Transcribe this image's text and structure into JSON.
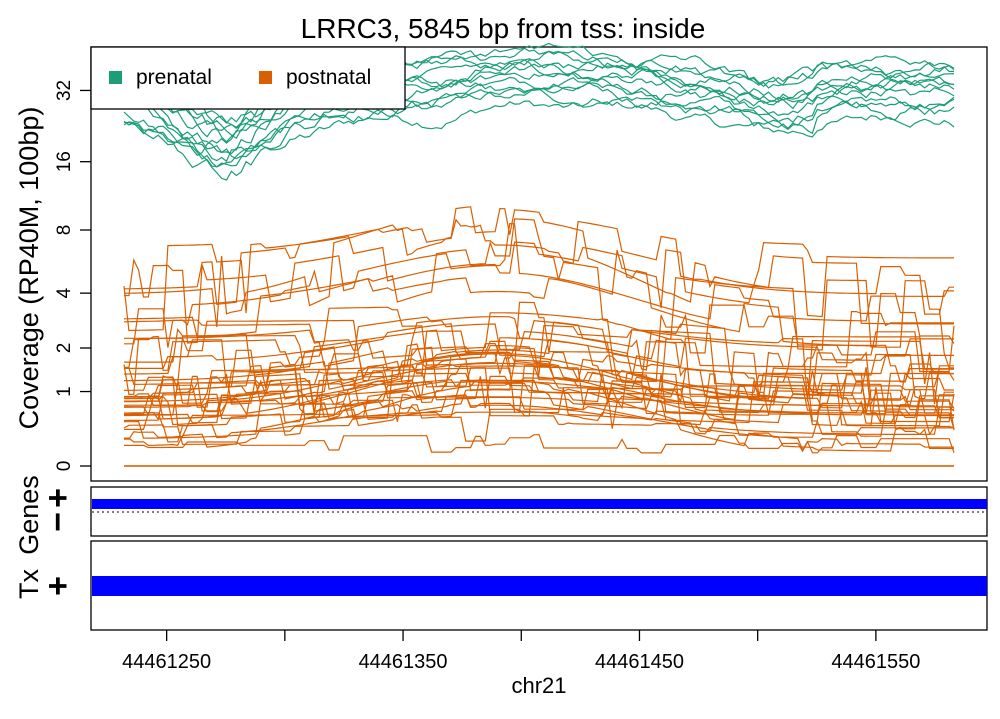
{
  "chart_data": {
    "type": "line",
    "title": "LRRC3, 5845 bp from tss: inside",
    "xlabel": "chr21",
    "ylabel": "Coverage (RP40M, 100bp)",
    "x_range": [
      44461218,
      44461597
    ],
    "x_ticks": [
      44461250,
      44461300,
      44461350,
      44461400,
      44461450,
      44461500,
      44461550
    ],
    "x_tick_labels": [
      "44461250",
      "",
      "44461350",
      "",
      "44461450",
      "",
      "44461550"
    ],
    "y_scale": "log2(y+1)",
    "y_ticks": [
      0,
      1,
      2,
      4,
      8,
      16,
      32
    ],
    "y_tick_labels": [
      "0",
      "1",
      "2",
      "4",
      "8",
      "16",
      "32"
    ],
    "legend": {
      "placement": "top-left",
      "entries": [
        {
          "label": "prenatal",
          "color": "#1b9e77"
        },
        {
          "label": "postnatal",
          "color": "#d95f02"
        }
      ]
    },
    "series_groups": [
      {
        "name": "prenatal",
        "color": "#1b9e77",
        "count": 12,
        "approx_range": [
          11,
          48
        ]
      },
      {
        "name": "postnatal",
        "color": "#d95f02",
        "count": 40,
        "approx_range": [
          0,
          8.5
        ]
      }
    ]
  },
  "panels": {
    "genes_label": "Genes",
    "genes_strands": [
      "+",
      "−"
    ],
    "genes_color": "#0000ff",
    "tx_label": "Tx",
    "tx_strand": "+",
    "tx_color": "#0000ff"
  }
}
